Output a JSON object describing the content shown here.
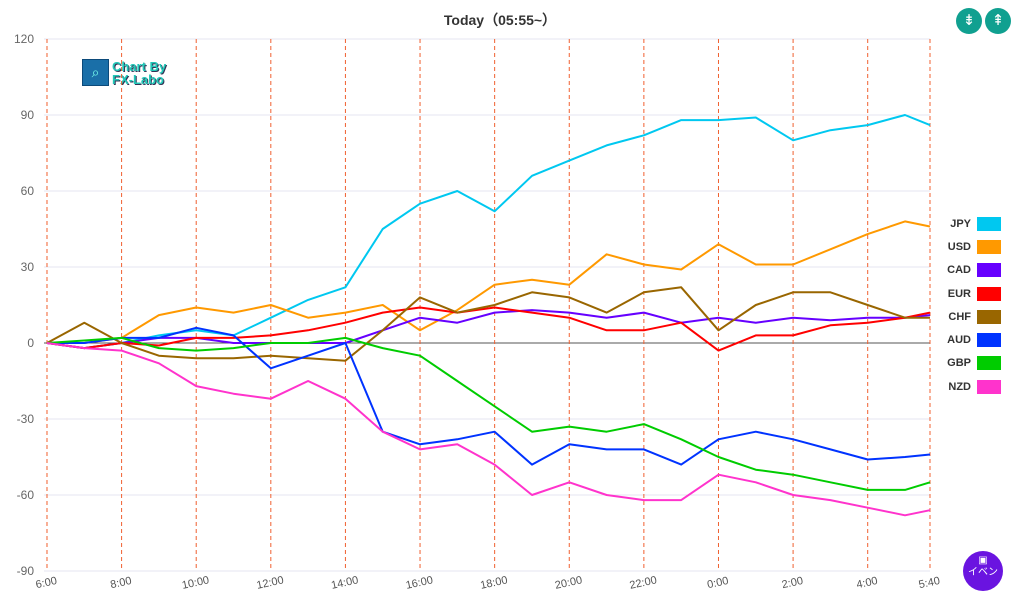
{
  "header": {
    "title": "Today（05:55~）",
    "compress_icon": "compress-vertical-icon",
    "expand_icon": "expand-vertical-icon"
  },
  "logo": {
    "line1": "Chart By",
    "line2": "FX-Labo"
  },
  "event_button": {
    "label": "イベン",
    "icon": "calendar-icon"
  },
  "chart_data": {
    "type": "line",
    "title": "Today（05:55~）",
    "ylim": [
      -90,
      120
    ],
    "yticks": [
      120,
      90,
      60,
      30,
      0,
      -30,
      -60,
      -90
    ],
    "x_unit": "hours since 6:00",
    "xlim": [
      -0.08,
      23.67
    ],
    "xticks": [
      {
        "x": 0,
        "label": "6:00"
      },
      {
        "x": 2,
        "label": "8:00"
      },
      {
        "x": 4,
        "label": "10:00"
      },
      {
        "x": 6,
        "label": "12:00"
      },
      {
        "x": 8,
        "label": "14:00"
      },
      {
        "x": 10,
        "label": "16:00"
      },
      {
        "x": 12,
        "label": "18:00"
      },
      {
        "x": 14,
        "label": "20:00"
      },
      {
        "x": 16,
        "label": "22:00"
      },
      {
        "x": 18,
        "label": "0:00"
      },
      {
        "x": 20,
        "label": "2:00"
      },
      {
        "x": 22,
        "label": "4:00"
      },
      {
        "x": 23.67,
        "label": "5:40"
      }
    ],
    "x": [
      0,
      1,
      2,
      3,
      4,
      5,
      6,
      7,
      8,
      9,
      10,
      11,
      12,
      13,
      14,
      15,
      16,
      17,
      18,
      19,
      20,
      21,
      22,
      23,
      23.67
    ],
    "legend_position": "right",
    "series": [
      {
        "name": "JPY",
        "color": "#00c8f0",
        "values": [
          0,
          -2,
          0,
          3,
          5,
          3,
          10,
          17,
          22,
          45,
          55,
          60,
          52,
          66,
          72,
          78,
          82,
          88,
          88,
          89,
          80,
          84,
          86,
          90,
          86
        ]
      },
      {
        "name": "USD",
        "color": "#ff9900",
        "values": [
          0,
          0,
          2,
          11,
          14,
          12,
          15,
          10,
          12,
          15,
          5,
          13,
          23,
          25,
          23,
          35,
          31,
          29,
          39,
          31,
          31,
          37,
          43,
          48,
          46
        ]
      },
      {
        "name": "CAD",
        "color": "#6600ff",
        "values": [
          0,
          -2,
          0,
          2,
          2,
          0,
          0,
          0,
          0,
          5,
          10,
          8,
          12,
          13,
          12,
          10,
          12,
          8,
          10,
          8,
          10,
          9,
          10,
          10,
          11
        ]
      },
      {
        "name": "EUR",
        "color": "#ff0000",
        "values": [
          0,
          -2,
          0,
          -1,
          2,
          2,
          3,
          5,
          8,
          12,
          14,
          12,
          14,
          12,
          10,
          5,
          5,
          8,
          -3,
          3,
          3,
          7,
          8,
          10,
          12
        ]
      },
      {
        "name": "CHF",
        "color": "#996600",
        "values": [
          0,
          8,
          0,
          -5,
          -6,
          -6,
          -5,
          -6,
          -7,
          5,
          18,
          12,
          15,
          20,
          18,
          12,
          20,
          22,
          5,
          15,
          20,
          20,
          15,
          10,
          10
        ]
      },
      {
        "name": "AUD",
        "color": "#0033ff",
        "values": [
          0,
          0,
          2,
          2,
          6,
          3,
          -10,
          -5,
          0,
          -35,
          -40,
          -38,
          -35,
          -48,
          -40,
          -42,
          -42,
          -48,
          -38,
          -35,
          -38,
          -42,
          -46,
          -45,
          -44
        ]
      },
      {
        "name": "GBP",
        "color": "#00cc00",
        "values": [
          0,
          1,
          2,
          -2,
          -3,
          -2,
          0,
          0,
          2,
          -2,
          -5,
          -15,
          -25,
          -35,
          -33,
          -35,
          -32,
          -38,
          -45,
          -50,
          -52,
          -55,
          -58,
          -58,
          -55
        ]
      },
      {
        "name": "NZD",
        "color": "#ff33cc",
        "values": [
          0,
          -2,
          -3,
          -8,
          -17,
          -20,
          -22,
          -15,
          -22,
          -35,
          -42,
          -40,
          -48,
          -60,
          -55,
          -60,
          -62,
          -62,
          -52,
          -55,
          -60,
          -62,
          -65,
          -68,
          -66
        ]
      }
    ]
  }
}
